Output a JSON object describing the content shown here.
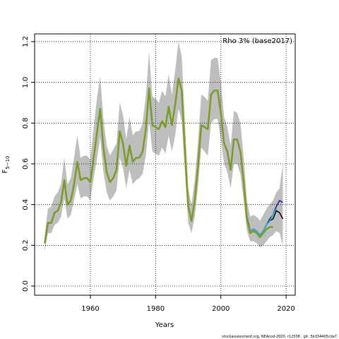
{
  "chart_data": {
    "type": "line",
    "title": "Rho 3% (base2017)",
    "xlabel": "Years",
    "ylabel": "F",
    "ylabel_sub": "5−10",
    "footer": "stockassessment.org, NEAcod-2020, r12508 , git: 5b334405cda7",
    "xlim": [
      1942.9,
      2022.8
    ],
    "ylim": [
      -0.045,
      1.238
    ],
    "xticks": [
      1960,
      1980,
      2000,
      2020
    ],
    "yticks": [
      {
        "value": 0,
        "label": "0.0"
      },
      0.2,
      0.4,
      0.6,
      0.8,
      {
        "value": 1,
        "label": "1.0"
      },
      1.2
    ],
    "grid": true,
    "band": {
      "color": "#bebebe",
      "x": [
        1946,
        1947,
        1948,
        1949,
        1950,
        1951,
        1952,
        1953,
        1954,
        1955,
        1956,
        1957,
        1958,
        1959,
        1960,
        1961,
        1962,
        1963,
        1964,
        1965,
        1966,
        1967,
        1968,
        1969,
        1970,
        1971,
        1972,
        1973,
        1974,
        1975,
        1976,
        1977,
        1978,
        1979,
        1980,
        1981,
        1982,
        1983,
        1984,
        1985,
        1986,
        1987,
        1988,
        1989,
        1990,
        1991,
        1992,
        1993,
        1994,
        1995,
        1996,
        1997,
        1998,
        1999,
        2000,
        2001,
        2002,
        2003,
        2004,
        2005,
        2006,
        2007,
        2008,
        2009,
        2010,
        2011,
        2012,
        2013,
        2014,
        2015,
        2016,
        2017,
        2018,
        2019
      ],
      "upper": [
        0.25,
        0.38,
        0.39,
        0.44,
        0.46,
        0.5,
        0.63,
        0.5,
        0.53,
        0.63,
        0.74,
        0.63,
        0.64,
        0.64,
        0.62,
        0.78,
        0.92,
        1.03,
        0.82,
        0.69,
        0.64,
        0.67,
        0.7,
        0.9,
        0.84,
        0.72,
        0.83,
        0.74,
        0.76,
        0.76,
        0.8,
        0.93,
        1.15,
        0.93,
        0.92,
        0.9,
        0.96,
        0.93,
        1.04,
        0.94,
        1.06,
        1.2,
        1.13,
        0.8,
        0.48,
        0.4,
        0.52,
        0.71,
        0.94,
        0.93,
        0.91,
        1.11,
        1.12,
        1.12,
        1.0,
        0.83,
        0.78,
        0.69,
        0.86,
        0.85,
        0.8,
        0.63,
        0.42,
        0.34,
        0.35,
        0.34,
        0.32,
        0.35,
        0.38,
        0.4,
        0.42,
        0.46,
        0.48,
        0.6
      ],
      "lower": [
        0.17,
        0.26,
        0.26,
        0.3,
        0.31,
        0.34,
        0.43,
        0.33,
        0.35,
        0.42,
        0.5,
        0.43,
        0.44,
        0.44,
        0.42,
        0.53,
        0.62,
        0.73,
        0.56,
        0.46,
        0.42,
        0.44,
        0.47,
        0.63,
        0.58,
        0.48,
        0.57,
        0.5,
        0.52,
        0.53,
        0.55,
        0.64,
        0.81,
        0.66,
        0.65,
        0.64,
        0.68,
        0.65,
        0.74,
        0.66,
        0.74,
        0.87,
        0.81,
        0.56,
        0.31,
        0.26,
        0.34,
        0.49,
        0.68,
        0.66,
        0.64,
        0.8,
        0.82,
        0.82,
        0.72,
        0.6,
        0.56,
        0.48,
        0.6,
        0.6,
        0.55,
        0.42,
        0.27,
        0.22,
        0.22,
        0.21,
        0.19,
        0.2,
        0.22,
        0.24,
        0.25,
        0.27,
        0.26,
        0.2
      ]
    },
    "series": [
      {
        "color": "#000000",
        "width": 1.5,
        "x": [
          2005,
          2006,
          2007,
          2008,
          2009,
          2010,
          2011,
          2012,
          2013,
          2014,
          2015,
          2016,
          2017,
          2018,
          2019
        ],
        "values": [
          0.72,
          0.66,
          0.51,
          0.34,
          0.27,
          0.28,
          0.27,
          0.25,
          0.27,
          0.3,
          0.32,
          0.33,
          0.37,
          0.36,
          0.33
        ]
      },
      {
        "color": "#1a1a8c",
        "width": 1.5,
        "x": [
          2005,
          2006,
          2007,
          2008,
          2009,
          2010,
          2011,
          2012,
          2013,
          2014,
          2015,
          2016,
          2017,
          2018,
          2019
        ],
        "values": [
          0.72,
          0.66,
          0.51,
          0.34,
          0.27,
          0.28,
          0.27,
          0.25,
          0.27,
          0.3,
          0.33,
          0.35,
          0.39,
          0.42,
          0.41
        ]
      },
      {
        "color": "#22b8e0",
        "width": 1.5,
        "x": [
          2005,
          2006,
          2007,
          2008,
          2009,
          2010,
          2011,
          2012,
          2013,
          2014,
          2015,
          2016,
          2017
        ],
        "values": [
          0.72,
          0.66,
          0.51,
          0.33,
          0.27,
          0.28,
          0.27,
          0.25,
          0.27,
          0.3,
          0.32,
          0.35,
          0.38
        ]
      },
      {
        "color": "#7a9a2a",
        "width": 2.5,
        "x": [
          1946,
          1947,
          1948,
          1949,
          1950,
          1951,
          1952,
          1953,
          1954,
          1955,
          1956,
          1957,
          1958,
          1959,
          1960,
          1961,
          1962,
          1963,
          1964,
          1965,
          1966,
          1967,
          1968,
          1969,
          1970,
          1971,
          1972,
          1973,
          1974,
          1975,
          1976,
          1977,
          1978,
          1979,
          1980,
          1981,
          1982,
          1983,
          1984,
          1985,
          1986,
          1987,
          1988,
          1989,
          1990,
          1991,
          1992,
          1993,
          1994,
          1995,
          1996,
          1997,
          1998,
          1999,
          2000,
          2001,
          2002,
          2003,
          2004,
          2005,
          2006,
          2007,
          2008,
          2009,
          2010,
          2011,
          2012,
          2013,
          2014,
          2015,
          2016
        ],
        "values": [
          0.21,
          0.31,
          0.31,
          0.36,
          0.37,
          0.41,
          0.52,
          0.4,
          0.42,
          0.5,
          0.61,
          0.52,
          0.53,
          0.53,
          0.51,
          0.63,
          0.75,
          0.87,
          0.68,
          0.56,
          0.51,
          0.53,
          0.57,
          0.76,
          0.7,
          0.59,
          0.69,
          0.61,
          0.63,
          0.63,
          0.66,
          0.77,
          0.97,
          0.79,
          0.78,
          0.77,
          0.81,
          0.78,
          0.88,
          0.79,
          0.89,
          1.02,
          0.96,
          0.66,
          0.39,
          0.32,
          0.42,
          0.59,
          0.79,
          0.78,
          0.77,
          0.94,
          0.96,
          0.96,
          0.85,
          0.7,
          0.66,
          0.57,
          0.72,
          0.72,
          0.66,
          0.51,
          0.33,
          0.26,
          0.27,
          0.26,
          0.24,
          0.26,
          0.28,
          0.29,
          0.29
        ]
      }
    ]
  }
}
